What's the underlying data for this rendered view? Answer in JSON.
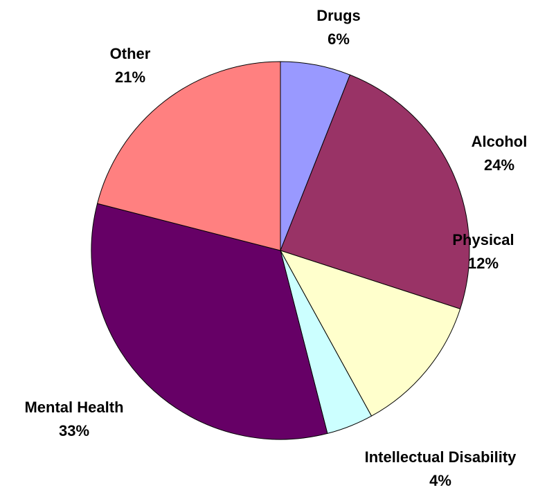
{
  "chart_data": {
    "type": "pie",
    "title": "",
    "slices": [
      {
        "label": "Drugs",
        "value": 6,
        "display": "6%",
        "color": "#9999FF"
      },
      {
        "label": "Alcohol",
        "value": 24,
        "display": "24%",
        "color": "#993366"
      },
      {
        "label": "Physical",
        "value": 12,
        "display": "12%",
        "color": "#FFFFCC"
      },
      {
        "label": "Intellectual Disability",
        "value": 4,
        "display": "4%",
        "color": "#CCFFFF"
      },
      {
        "label": "Mental Health",
        "value": 33,
        "display": "33%",
        "color": "#660066"
      },
      {
        "label": "Other",
        "value": 21,
        "display": "21%",
        "color": "#FF8080"
      }
    ],
    "start_angle": "12 o'clock",
    "direction": "clockwise",
    "legend": "none",
    "data_labels": "outside, category name and percentage"
  }
}
